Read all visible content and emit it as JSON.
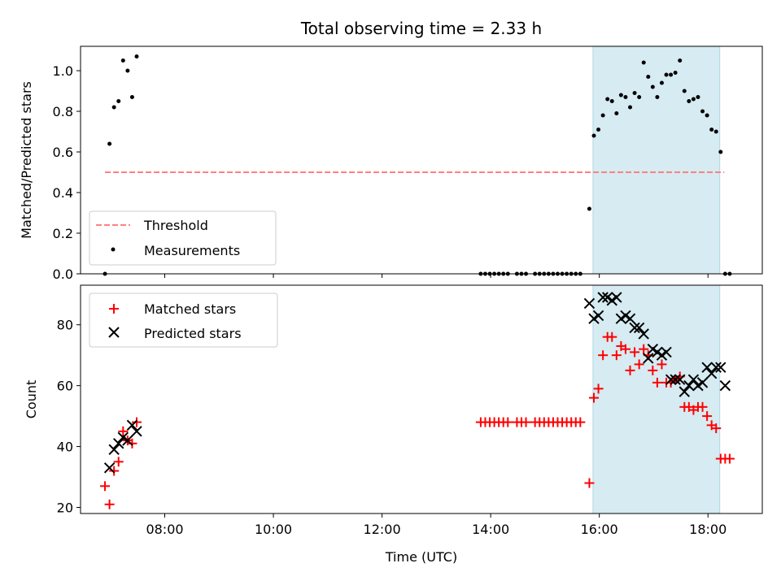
{
  "chart_data": [
    {
      "type": "scatter",
      "title": "Total observing time = 2.33 h",
      "xlabel": "",
      "ylabel": "Matched/Predicted stars",
      "xlim": [
        "06:27",
        "19:00"
      ],
      "ylim": [
        0.0,
        1.12
      ],
      "y_ticks": [
        "0.0",
        "0.2",
        "0.4",
        "0.6",
        "0.8",
        "1.0"
      ],
      "shaded_region": {
        "start": "15:53",
        "end": "18:13",
        "color": "#add8e6"
      },
      "threshold": {
        "name": "Threshold",
        "y": 0.5,
        "x_start": "06:54",
        "x_end": "18:18",
        "color": "#ff8080",
        "style": "dashed"
      },
      "legend": {
        "placement": "lower-left",
        "entries": [
          "Threshold",
          "Measurements"
        ]
      },
      "series": [
        {
          "name": "Measurements",
          "marker": "dot",
          "color": "#000000",
          "points": [
            [
              "06:54",
              0.0
            ],
            [
              "06:59",
              0.64
            ],
            [
              "07:04",
              0.82
            ],
            [
              "07:09",
              0.85
            ],
            [
              "07:14",
              1.05
            ],
            [
              "07:19",
              1.0
            ],
            [
              "07:24",
              0.87
            ],
            [
              "07:29",
              1.07
            ],
            [
              "13:49",
              0.0
            ],
            [
              "13:54",
              0.0
            ],
            [
              "13:59",
              0.0
            ],
            [
              "14:04",
              0.0
            ],
            [
              "14:09",
              0.0
            ],
            [
              "14:14",
              0.0
            ],
            [
              "14:19",
              0.0
            ],
            [
              "14:29",
              0.0
            ],
            [
              "14:34",
              0.0
            ],
            [
              "14:39",
              0.0
            ],
            [
              "14:49",
              0.0
            ],
            [
              "14:54",
              0.0
            ],
            [
              "14:59",
              0.0
            ],
            [
              "15:04",
              0.0
            ],
            [
              "15:09",
              0.0
            ],
            [
              "15:14",
              0.0
            ],
            [
              "15:19",
              0.0
            ],
            [
              "15:24",
              0.0
            ],
            [
              "15:29",
              0.0
            ],
            [
              "15:34",
              0.0
            ],
            [
              "15:39",
              0.0
            ],
            [
              "15:49",
              0.32
            ],
            [
              "15:54",
              0.68
            ],
            [
              "15:59",
              0.71
            ],
            [
              "16:04",
              0.78
            ],
            [
              "16:09",
              0.86
            ],
            [
              "16:14",
              0.85
            ],
            [
              "16:19",
              0.79
            ],
            [
              "16:24",
              0.88
            ],
            [
              "16:29",
              0.87
            ],
            [
              "16:34",
              0.82
            ],
            [
              "16:39",
              0.89
            ],
            [
              "16:44",
              0.87
            ],
            [
              "16:49",
              1.04
            ],
            [
              "16:54",
              0.97
            ],
            [
              "16:59",
              0.92
            ],
            [
              "17:04",
              0.87
            ],
            [
              "17:09",
              0.94
            ],
            [
              "17:14",
              0.98
            ],
            [
              "17:19",
              0.98
            ],
            [
              "17:24",
              0.99
            ],
            [
              "17:29",
              1.05
            ],
            [
              "17:34",
              0.9
            ],
            [
              "17:39",
              0.85
            ],
            [
              "17:44",
              0.86
            ],
            [
              "17:49",
              0.87
            ],
            [
              "17:54",
              0.8
            ],
            [
              "17:59",
              0.78
            ],
            [
              "18:04",
              0.71
            ],
            [
              "18:09",
              0.7
            ],
            [
              "18:14",
              0.6
            ],
            [
              "18:19",
              0.0
            ],
            [
              "18:24",
              0.0
            ]
          ]
        }
      ]
    },
    {
      "type": "scatter",
      "title": "",
      "xlabel": "Time (UTC)",
      "ylabel": "Count",
      "xlim": [
        "06:27",
        "19:00"
      ],
      "ylim": [
        18,
        93
      ],
      "x_ticks": [
        "08:00",
        "10:00",
        "12:00",
        "14:00",
        "16:00",
        "18:00"
      ],
      "y_ticks": [
        "20",
        "40",
        "60",
        "80"
      ],
      "shaded_region": {
        "start": "15:53",
        "end": "18:13",
        "color": "#add8e6"
      },
      "legend": {
        "placement": "top-left",
        "entries": [
          "Matched stars",
          "Predicted stars"
        ]
      },
      "series": [
        {
          "name": "Matched stars",
          "marker": "plus",
          "color": "#ff0000",
          "points": [
            [
              "06:54",
              27
            ],
            [
              "06:59",
              21
            ],
            [
              "07:04",
              32
            ],
            [
              "07:09",
              35
            ],
            [
              "07:14",
              45
            ],
            [
              "07:19",
              42
            ],
            [
              "07:24",
              41
            ],
            [
              "07:29",
              48
            ],
            [
              "13:49",
              48
            ],
            [
              "13:54",
              48
            ],
            [
              "13:59",
              48
            ],
            [
              "14:04",
              48
            ],
            [
              "14:09",
              48
            ],
            [
              "14:14",
              48
            ],
            [
              "14:19",
              48
            ],
            [
              "14:29",
              48
            ],
            [
              "14:34",
              48
            ],
            [
              "14:39",
              48
            ],
            [
              "14:49",
              48
            ],
            [
              "14:54",
              48
            ],
            [
              "14:59",
              48
            ],
            [
              "15:04",
              48
            ],
            [
              "15:09",
              48
            ],
            [
              "15:14",
              48
            ],
            [
              "15:19",
              48
            ],
            [
              "15:24",
              48
            ],
            [
              "15:29",
              48
            ],
            [
              "15:34",
              48
            ],
            [
              "15:39",
              48
            ],
            [
              "15:49",
              28
            ],
            [
              "15:54",
              56
            ],
            [
              "15:59",
              59
            ],
            [
              "16:04",
              70
            ],
            [
              "16:09",
              76
            ],
            [
              "16:14",
              76
            ],
            [
              "16:19",
              70
            ],
            [
              "16:24",
              73
            ],
            [
              "16:29",
              72
            ],
            [
              "16:34",
              65
            ],
            [
              "16:39",
              71
            ],
            [
              "16:44",
              67
            ],
            [
              "16:49",
              72
            ],
            [
              "16:54",
              70
            ],
            [
              "16:59",
              65
            ],
            [
              "17:04",
              61
            ],
            [
              "17:09",
              67
            ],
            [
              "17:14",
              61
            ],
            [
              "17:19",
              61
            ],
            [
              "17:24",
              62
            ],
            [
              "17:29",
              63
            ],
            [
              "17:34",
              53
            ],
            [
              "17:39",
              53
            ],
            [
              "17:44",
              52
            ],
            [
              "17:49",
              53
            ],
            [
              "17:54",
              53
            ],
            [
              "17:59",
              50
            ],
            [
              "18:04",
              47
            ],
            [
              "18:09",
              46
            ],
            [
              "18:14",
              36
            ],
            [
              "18:19",
              36
            ],
            [
              "18:24",
              36
            ]
          ]
        },
        {
          "name": "Predicted stars",
          "marker": "x",
          "color": "#000000",
          "points": [
            [
              "06:59",
              33
            ],
            [
              "07:04",
              39
            ],
            [
              "07:09",
              41
            ],
            [
              "07:14",
              43
            ],
            [
              "07:19",
              42
            ],
            [
              "07:24",
              47
            ],
            [
              "07:29",
              45
            ],
            [
              "15:49",
              87
            ],
            [
              "15:54",
              82
            ],
            [
              "15:59",
              83
            ],
            [
              "16:04",
              89
            ],
            [
              "16:09",
              89
            ],
            [
              "16:14",
              88
            ],
            [
              "16:19",
              89
            ],
            [
              "16:24",
              82
            ],
            [
              "16:29",
              83
            ],
            [
              "16:34",
              82
            ],
            [
              "16:39",
              79
            ],
            [
              "16:44",
              79
            ],
            [
              "16:49",
              77
            ],
            [
              "16:54",
              69
            ],
            [
              "16:59",
              72
            ],
            [
              "17:04",
              71
            ],
            [
              "17:09",
              70
            ],
            [
              "17:14",
              71
            ],
            [
              "17:19",
              62
            ],
            [
              "17:24",
              62
            ],
            [
              "17:29",
              62
            ],
            [
              "17:34",
              58
            ],
            [
              "17:39",
              60
            ],
            [
              "17:44",
              62
            ],
            [
              "17:49",
              60
            ],
            [
              "17:54",
              61
            ],
            [
              "17:59",
              66
            ],
            [
              "18:04",
              64
            ],
            [
              "18:09",
              66
            ],
            [
              "18:14",
              66
            ],
            [
              "18:19",
              60
            ]
          ]
        }
      ]
    }
  ]
}
